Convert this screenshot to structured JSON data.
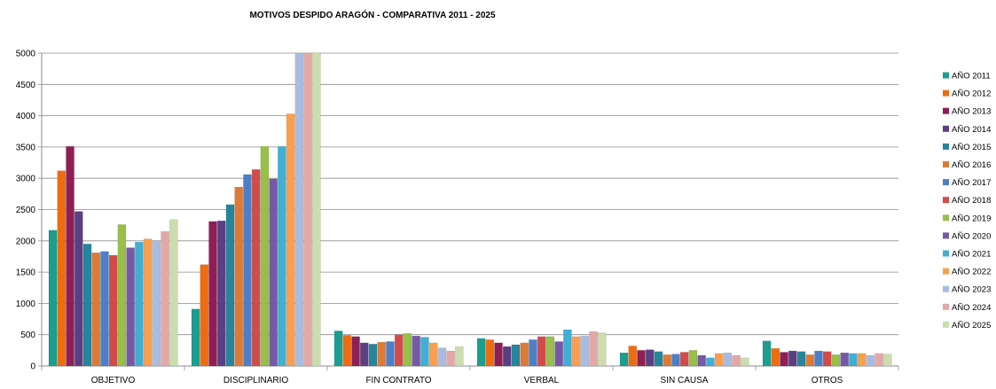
{
  "chart_data": {
    "type": "bar",
    "title": "MOTIVOS DESPIDO ARAGÓN - COMPARATIVA 2011 - 2025",
    "xlabel": "",
    "ylabel": "",
    "ylim": [
      0,
      5000
    ],
    "yticks": [
      0,
      500,
      1000,
      1500,
      2000,
      2500,
      3000,
      3500,
      4000,
      4500,
      5000
    ],
    "grid": true,
    "legend_position": "right",
    "categories": [
      "OBJETIVO",
      "DISCIPLINARIO",
      "FIN CONTRATO",
      "VERBAL",
      "SIN CAUSA",
      "OTROS"
    ],
    "series": [
      {
        "name": "AÑO 2011",
        "color": "#1a9e8f",
        "values": [
          2170,
          910,
          560,
          440,
          210,
          400
        ]
      },
      {
        "name": "AÑO 2012",
        "color": "#ee6c10",
        "values": [
          3120,
          1620,
          490,
          420,
          320,
          280
        ]
      },
      {
        "name": "AÑO 2013",
        "color": "#8e1f55",
        "values": [
          3510,
          2310,
          470,
          370,
          250,
          220
        ]
      },
      {
        "name": "AÑO 2014",
        "color": "#5b3f82",
        "values": [
          2470,
          2320,
          370,
          310,
          260,
          240
        ]
      },
      {
        "name": "AÑO 2015",
        "color": "#27859b",
        "values": [
          1950,
          2580,
          350,
          340,
          230,
          230
        ]
      },
      {
        "name": "AÑO 2016",
        "color": "#dd7a36",
        "values": [
          1810,
          2860,
          380,
          370,
          180,
          180
        ]
      },
      {
        "name": "AÑO 2017",
        "color": "#4d7fc6",
        "values": [
          1830,
          3060,
          390,
          420,
          190,
          240
        ]
      },
      {
        "name": "AÑO 2018",
        "color": "#d24b4b",
        "values": [
          1770,
          3140,
          500,
          470,
          220,
          230
        ]
      },
      {
        "name": "AÑO 2019",
        "color": "#97bf49",
        "values": [
          2260,
          3510,
          520,
          470,
          250,
          180
        ]
      },
      {
        "name": "AÑO 2020",
        "color": "#7659a6",
        "values": [
          1890,
          2990,
          480,
          390,
          170,
          210
        ]
      },
      {
        "name": "AÑO 2021",
        "color": "#41aed2",
        "values": [
          1980,
          3510,
          460,
          580,
          130,
          200
        ]
      },
      {
        "name": "AÑO 2022",
        "color": "#f99f4f",
        "values": [
          2030,
          4030,
          370,
          470,
          200,
          200
        ]
      },
      {
        "name": "AÑO 2023",
        "color": "#a9bcdf",
        "values": [
          2000,
          5000,
          290,
          480,
          210,
          170
        ]
      },
      {
        "name": "AÑO 2024",
        "color": "#e3a8a6",
        "values": [
          2150,
          4990,
          240,
          550,
          170,
          200
        ]
      },
      {
        "name": "AÑO 2025",
        "color": "#cbdcae",
        "values": [
          2340,
          5010,
          310,
          530,
          130,
          190
        ]
      }
    ]
  }
}
